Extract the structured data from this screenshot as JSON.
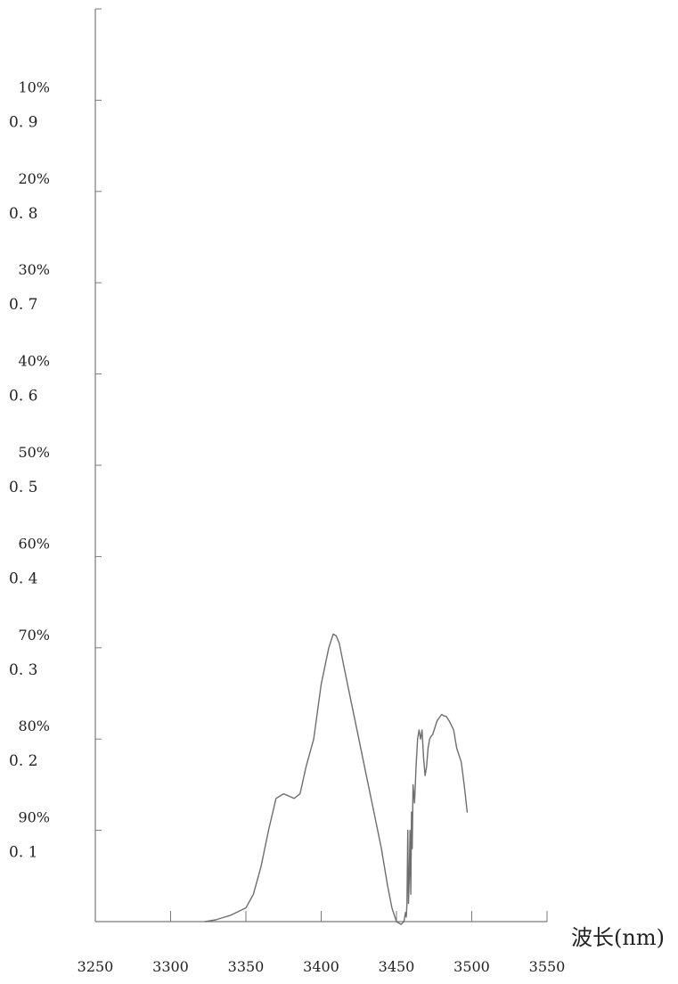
{
  "chart_data": {
    "type": "line",
    "title": "",
    "xlabel": "波长(nm)",
    "ylabel": "",
    "xlim": [
      3250,
      3550
    ],
    "ylim": [
      0,
      1.0
    ],
    "x_ticks": [
      3250,
      3300,
      3350,
      3400,
      3450,
      3500,
      3550
    ],
    "y_ticks": [
      {
        "value": 0.9,
        "percent_label": "10%",
        "abs_label": "0. 9"
      },
      {
        "value": 0.8,
        "percent_label": "20%",
        "abs_label": "0. 8"
      },
      {
        "value": 0.7,
        "percent_label": "30%",
        "abs_label": "0. 7"
      },
      {
        "value": 0.6,
        "percent_label": "40%",
        "abs_label": "0. 6"
      },
      {
        "value": 0.5,
        "percent_label": "50%",
        "abs_label": "0. 5"
      },
      {
        "value": 0.4,
        "percent_label": "60%",
        "abs_label": "0. 4"
      },
      {
        "value": 0.3,
        "percent_label": "70%",
        "abs_label": "0. 3"
      },
      {
        "value": 0.2,
        "percent_label": "80%",
        "abs_label": "0. 2"
      },
      {
        "value": 0.1,
        "percent_label": "90%",
        "abs_label": "0. 1"
      }
    ],
    "grid": false,
    "legend": "none",
    "series": [
      {
        "x": [
          3323,
          3330,
          3340,
          3350,
          3355,
          3360,
          3365,
          3370,
          3375,
          3378,
          3382,
          3386,
          3390,
          3395,
          3400,
          3405,
          3408,
          3410,
          3412,
          3415,
          3420,
          3425,
          3430,
          3435,
          3440,
          3444,
          3447,
          3450,
          3453,
          3455,
          3456,
          3456.5,
          3457,
          3457.5,
          3458,
          3458.5,
          3459,
          3459.5,
          3460,
          3460.5,
          3461,
          3462,
          3463,
          3464,
          3465,
          3466,
          3467,
          3468,
          3469,
          3470,
          3471,
          3472,
          3473,
          3474,
          3475,
          3477,
          3480,
          3482,
          3483,
          3485,
          3488,
          3490,
          3493,
          3495,
          3497
        ],
        "y": [
          0.0,
          0.002,
          0.007,
          0.015,
          0.03,
          0.06,
          0.1,
          0.135,
          0.14,
          0.138,
          0.135,
          0.14,
          0.17,
          0.2,
          0.26,
          0.3,
          0.315,
          0.313,
          0.305,
          0.28,
          0.24,
          0.2,
          0.16,
          0.12,
          0.08,
          0.04,
          0.015,
          0.0,
          -0.003,
          0.0,
          0.01,
          0.005,
          0.02,
          0.1,
          0.02,
          0.05,
          0.1,
          0.03,
          0.12,
          0.08,
          0.15,
          0.13,
          0.17,
          0.2,
          0.21,
          0.2,
          0.21,
          0.18,
          0.16,
          0.17,
          0.19,
          0.2,
          0.203,
          0.205,
          0.21,
          0.22,
          0.227,
          0.225,
          0.225,
          0.22,
          0.21,
          0.19,
          0.175,
          0.15,
          0.12
        ]
      }
    ]
  }
}
